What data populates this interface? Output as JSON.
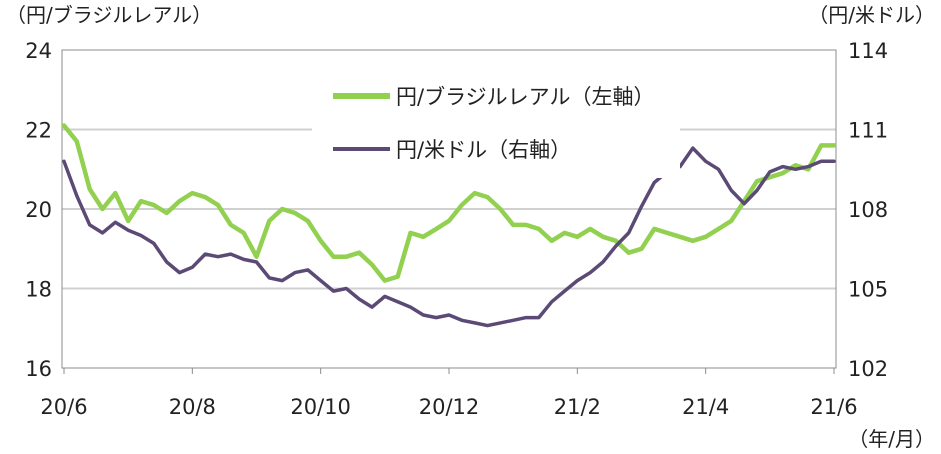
{
  "chart_data": {
    "type": "line",
    "left_axis": {
      "label": "（円/ブラジルレアル）",
      "ylim": [
        16,
        24
      ],
      "ticks": [
        "24",
        "22",
        "20",
        "18",
        "16"
      ]
    },
    "right_axis": {
      "label": "（円/米ドル）",
      "ylim": [
        102,
        114
      ],
      "ticks": [
        "114",
        "111",
        "108",
        "105",
        "102"
      ]
    },
    "x_axis": {
      "label": "（年/月）",
      "ticks": [
        "20/6",
        "20/8",
        "20/10",
        "20/12",
        "21/2",
        "21/4",
        "21/6"
      ]
    },
    "gridlines": true,
    "legend_position": "top-center",
    "series": [
      {
        "name": "円/ブラジルレアル（左軸）",
        "axis": "left",
        "color": "#92D050",
        "x": [
          0,
          0.2,
          0.4,
          0.6,
          0.8,
          1.0,
          1.2,
          1.4,
          1.6,
          1.8,
          2.0,
          2.2,
          2.4,
          2.6,
          2.8,
          3.0,
          3.2,
          3.4,
          3.6,
          3.8,
          4.0,
          4.2,
          4.4,
          4.6,
          4.8,
          5.0,
          5.2,
          5.4,
          5.6,
          5.8,
          6.0,
          6.2,
          6.4,
          6.6,
          6.8,
          7.0,
          7.2,
          7.4,
          7.6,
          7.8,
          8.0,
          8.2,
          8.4,
          8.6,
          8.8,
          9.0,
          9.2,
          9.4,
          9.6,
          9.8,
          10.0,
          10.2,
          10.4,
          10.6,
          10.8,
          11.0,
          11.2,
          11.4,
          11.6,
          11.8,
          12.0
        ],
        "values": [
          22.1,
          21.7,
          20.5,
          20.0,
          20.4,
          19.7,
          20.2,
          20.1,
          19.9,
          20.2,
          20.4,
          20.3,
          20.1,
          19.6,
          19.4,
          18.8,
          19.7,
          20.0,
          19.9,
          19.7,
          19.2,
          18.8,
          18.8,
          18.9,
          18.6,
          18.2,
          18.3,
          19.4,
          19.3,
          19.5,
          19.7,
          20.1,
          20.4,
          20.3,
          20.0,
          19.6,
          19.6,
          19.5,
          19.2,
          19.4,
          19.3,
          19.5,
          19.3,
          19.2,
          18.9,
          19.0,
          19.5,
          19.4,
          19.3,
          19.2,
          19.3,
          19.5,
          19.7,
          20.2,
          20.7,
          20.8,
          20.9,
          21.1,
          21.0,
          21.6,
          21.6
        ]
      },
      {
        "name": "円/米ドル（右軸）",
        "axis": "right",
        "color": "#5B4A75",
        "x": [
          0,
          0.2,
          0.4,
          0.6,
          0.8,
          1.0,
          1.2,
          1.4,
          1.6,
          1.8,
          2.0,
          2.2,
          2.4,
          2.6,
          2.8,
          3.0,
          3.2,
          3.4,
          3.6,
          3.8,
          4.0,
          4.2,
          4.4,
          4.6,
          4.8,
          5.0,
          5.2,
          5.4,
          5.6,
          5.8,
          6.0,
          6.2,
          6.4,
          6.6,
          6.8,
          7.0,
          7.2,
          7.4,
          7.6,
          7.8,
          8.0,
          8.2,
          8.4,
          8.6,
          8.8,
          9.0,
          9.2,
          9.4,
          9.6,
          9.8,
          10.0,
          10.2,
          10.4,
          10.6,
          10.8,
          11.0,
          11.2,
          11.4,
          11.6,
          11.8,
          12.0
        ],
        "values": [
          109.8,
          108.5,
          107.4,
          107.1,
          107.5,
          107.2,
          107.0,
          106.7,
          106.0,
          105.6,
          105.8,
          106.3,
          106.2,
          106.3,
          106.1,
          106.0,
          105.4,
          105.3,
          105.6,
          105.7,
          105.3,
          104.9,
          105.0,
          104.6,
          104.3,
          104.7,
          104.5,
          104.3,
          104.0,
          103.9,
          104.0,
          103.8,
          103.7,
          103.6,
          103.7,
          103.8,
          103.9,
          103.9,
          104.5,
          104.9,
          105.3,
          105.6,
          106.0,
          106.6,
          107.1,
          108.1,
          109.0,
          109.4,
          109.6,
          110.3,
          109.8,
          109.5,
          108.7,
          108.2,
          108.7,
          109.4,
          109.6,
          109.5,
          109.6,
          109.8,
          109.8
        ]
      }
    ]
  }
}
